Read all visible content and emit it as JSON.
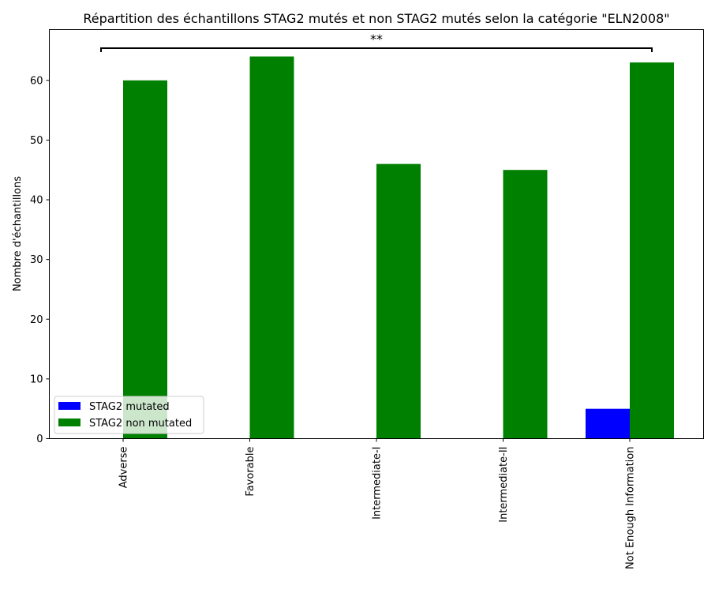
{
  "colors": {
    "mutated": "#0000ff",
    "non_mutated": "#008000",
    "axis": "#000000",
    "background": "#ffffff"
  },
  "chart_data": {
    "type": "bar",
    "title": "Répartition des échantillons STAG2 mutés et non STAG2 mutés selon la catégorie \"ELN2008\"",
    "xlabel": "",
    "ylabel": "Nombre d'échantillons",
    "categories": [
      "Adverse",
      "Favorable",
      "Intermediate-I",
      "Intermediate-II",
      "Not Enough Information"
    ],
    "series": [
      {
        "name": "STAG2 mutated",
        "color": "#0000ff",
        "values": [
          0,
          0,
          0,
          0,
          5
        ]
      },
      {
        "name": "STAG2 non mutated",
        "color": "#008000",
        "values": [
          60,
          64,
          46,
          45,
          63
        ]
      }
    ],
    "ylim": [
      0,
      68.5
    ],
    "yticks": [
      0,
      10,
      20,
      30,
      40,
      50,
      60
    ],
    "legend": {
      "position": "lower-left"
    },
    "grid": false,
    "annotation": {
      "text": "**",
      "from_category": "Adverse",
      "to_category": "Not Enough Information"
    }
  }
}
